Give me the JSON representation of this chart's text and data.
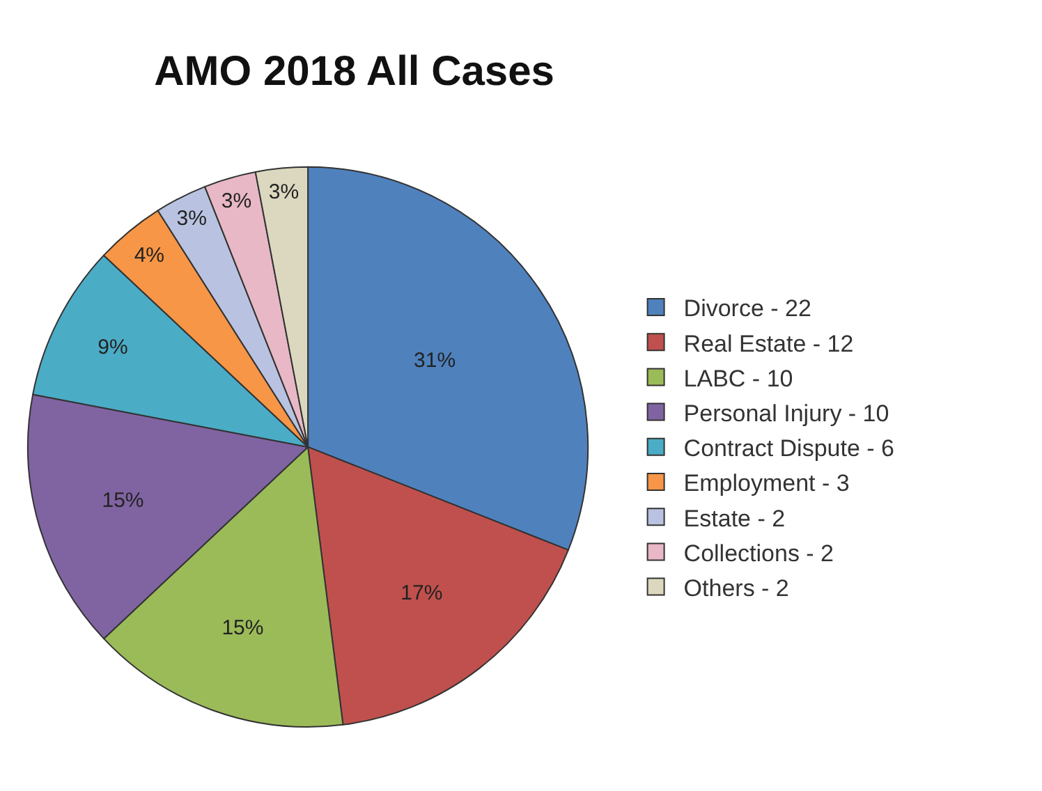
{
  "chart_data": {
    "type": "pie",
    "title": "AMO 2018 All Cases",
    "categories": [
      "Divorce - 22",
      "Real Estate - 12",
      "LABC - 10",
      "Personal Injury - 10",
      "Contract Dispute - 6",
      "Employment - 3",
      "Estate - 2",
      "Collections - 2",
      "Others - 2"
    ],
    "values": [
      31,
      17,
      15,
      15,
      9,
      4,
      3,
      3,
      3
    ],
    "value_labels": [
      "31%",
      "17%",
      "15%",
      "15%",
      "9%",
      "4%",
      "3%",
      "3%",
      "3%"
    ],
    "colors": [
      "#4f81bd",
      "#c0504d",
      "#9bbb59",
      "#8064a2",
      "#4bacc6",
      "#f79646",
      "#b9c3e1",
      "#e8b8c6",
      "#dcd8c0"
    ],
    "legend": "right"
  }
}
